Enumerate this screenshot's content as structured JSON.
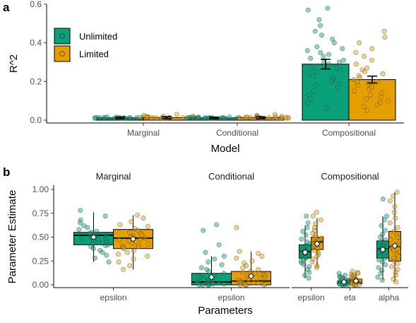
{
  "colors": {
    "unlimited": "#0aa07a",
    "limited": "#e69f00"
  },
  "chart_data": [
    {
      "type": "bar",
      "panel_label": "a",
      "xlabel": "Model",
      "ylabel": "R^2",
      "ylim": [
        0,
        0.6
      ],
      "yticks": [
        "0.0",
        "0.2",
        "0.4",
        "0.6"
      ],
      "categories": [
        "Marginal",
        "Conditional",
        "Compositional"
      ],
      "legend_position": "top-left",
      "series": [
        {
          "name": "Unlimited",
          "values": [
            0.012,
            0.012,
            0.29
          ],
          "error": [
            0.004,
            0.004,
            0.025
          ]
        },
        {
          "name": "Limited",
          "values": [
            0.013,
            0.013,
            0.21
          ],
          "error": [
            0.005,
            0.005,
            0.018
          ]
        }
      ],
      "points": {
        "Marginal": {
          "Unlimited": [
            0.01,
            0.012,
            0.013,
            0.011,
            0.015,
            0.01,
            0.012,
            0.014,
            0.01,
            0.011,
            0.016,
            0.013,
            0.012,
            0.01,
            0.011,
            0.014,
            0.012,
            0.013,
            0.01,
            0.012
          ],
          "Limited": [
            0.01,
            0.014,
            0.02,
            0.012,
            0.025,
            0.01,
            0.015,
            0.018,
            0.011,
            0.013,
            0.03,
            0.012,
            0.016,
            0.01,
            0.02,
            0.012,
            0.014,
            0.011,
            0.017,
            0.013
          ]
        },
        "Conditional": {
          "Unlimited": [
            0.01,
            0.012,
            0.013,
            0.011,
            0.015,
            0.01,
            0.012,
            0.014,
            0.01,
            0.011,
            0.016,
            0.013,
            0.012,
            0.01,
            0.011,
            0.014,
            0.012,
            0.013,
            0.01,
            0.012
          ],
          "Limited": [
            0.01,
            0.014,
            0.02,
            0.012,
            0.025,
            0.01,
            0.015,
            0.018,
            0.011,
            0.013,
            0.03,
            0.012,
            0.016,
            0.01,
            0.02,
            0.012,
            0.014,
            0.011,
            0.017,
            0.013
          ]
        },
        "Compositional": {
          "Unlimited": [
            0.58,
            0.57,
            0.52,
            0.49,
            0.46,
            0.44,
            0.42,
            0.4,
            0.38,
            0.37,
            0.36,
            0.35,
            0.34,
            0.33,
            0.32,
            0.31,
            0.3,
            0.3,
            0.29,
            0.28,
            0.27,
            0.27,
            0.26,
            0.25,
            0.24,
            0.23,
            0.22,
            0.21,
            0.2,
            0.19,
            0.18,
            0.17,
            0.15,
            0.13,
            0.11,
            0.09,
            0.06
          ],
          "Limited": [
            0.46,
            0.43,
            0.4,
            0.37,
            0.35,
            0.33,
            0.31,
            0.29,
            0.27,
            0.26,
            0.25,
            0.24,
            0.23,
            0.22,
            0.21,
            0.2,
            0.2,
            0.19,
            0.18,
            0.17,
            0.16,
            0.15,
            0.14,
            0.13,
            0.12,
            0.11,
            0.1,
            0.09,
            0.08,
            0.07,
            0.05
          ]
        }
      }
    },
    {
      "type": "box",
      "panel_label": "b",
      "xlabel": "Parameters",
      "ylabel": "Parameter Estimate",
      "ylim": [
        0,
        1
      ],
      "yticks": [
        "0.00",
        "0.25",
        "0.50",
        "0.75",
        "1.00"
      ],
      "facets": [
        {
          "title": "Marginal",
          "params": [
            {
              "name": "epsilon",
              "Unlimited": {
                "q1": 0.42,
                "median": 0.52,
                "q3": 0.55,
                "lo": 0.24,
                "hi": 0.76,
                "mean": 0.5,
                "points": [
                  0.78,
                  0.72,
                  0.68,
                  0.65,
                  0.62,
                  0.6,
                  0.58,
                  0.56,
                  0.55,
                  0.54,
                  0.53,
                  0.52,
                  0.51,
                  0.5,
                  0.49,
                  0.48,
                  0.47,
                  0.46,
                  0.45,
                  0.44,
                  0.43,
                  0.42,
                  0.41,
                  0.4,
                  0.38,
                  0.36,
                  0.34,
                  0.31,
                  0.28,
                  0.24
                ]
              },
              "Limited": {
                "q1": 0.38,
                "median": 0.49,
                "q3": 0.58,
                "lo": 0.16,
                "hi": 0.73,
                "mean": 0.48,
                "points": [
                  0.73,
                  0.7,
                  0.66,
                  0.63,
                  0.61,
                  0.59,
                  0.57,
                  0.55,
                  0.54,
                  0.52,
                  0.51,
                  0.5,
                  0.49,
                  0.48,
                  0.47,
                  0.46,
                  0.44,
                  0.43,
                  0.42,
                  0.41,
                  0.4,
                  0.39,
                  0.38,
                  0.36,
                  0.34,
                  0.32,
                  0.3,
                  0.27,
                  0.24,
                  0.2,
                  0.16
                ]
              }
            }
          ]
        },
        {
          "title": "Conditional",
          "params": [
            {
              "name": "epsilon",
              "Unlimited": {
                "q1": 0.0,
                "median": 0.03,
                "q3": 0.12,
                "lo": 0.0,
                "hi": 0.3,
                "mean": 0.08,
                "points": [
                  0.63,
                  0.57,
                  0.42,
                  0.34,
                  0.3,
                  0.27,
                  0.24,
                  0.21,
                  0.18,
                  0.16,
                  0.14,
                  0.12,
                  0.1,
                  0.09,
                  0.08,
                  0.07,
                  0.06,
                  0.05,
                  0.04,
                  0.03,
                  0.03,
                  0.02,
                  0.02,
                  0.01,
                  0.01,
                  0.01,
                  0.0,
                  0.0,
                  0.0,
                  0.0
                ]
              },
              "Limited": {
                "q1": 0.0,
                "median": 0.04,
                "q3": 0.14,
                "lo": 0.0,
                "hi": 0.35,
                "mean": 0.09,
                "points": [
                  0.6,
                  0.35,
                  0.33,
                  0.3,
                  0.28,
                  0.25,
                  0.23,
                  0.2,
                  0.18,
                  0.16,
                  0.14,
                  0.13,
                  0.12,
                  0.11,
                  0.1,
                  0.09,
                  0.08,
                  0.07,
                  0.06,
                  0.05,
                  0.04,
                  0.03,
                  0.02,
                  0.02,
                  0.01,
                  0.01,
                  0.0,
                  0.0,
                  0.0,
                  0.0
                ]
              }
            }
          ]
        },
        {
          "title": "Compositional",
          "params": [
            {
              "name": "epsilon",
              "Unlimited": {
                "q1": 0.28,
                "median": 0.35,
                "q3": 0.42,
                "lo": 0.07,
                "hi": 0.62,
                "mean": 0.34,
                "points": [
                  0.72,
                  0.65,
                  0.6,
                  0.56,
                  0.52,
                  0.48,
                  0.45,
                  0.43,
                  0.41,
                  0.39,
                  0.37,
                  0.36,
                  0.35,
                  0.34,
                  0.33,
                  0.32,
                  0.31,
                  0.3,
                  0.29,
                  0.28,
                  0.27,
                  0.25,
                  0.23,
                  0.21,
                  0.19,
                  0.16,
                  0.13,
                  0.1,
                  0.07
                ]
              },
              "Limited": {
                "q1": 0.37,
                "median": 0.45,
                "q3": 0.5,
                "lo": 0.18,
                "hi": 0.7,
                "mean": 0.43,
                "points": [
                  0.76,
                  0.72,
                  0.68,
                  0.64,
                  0.6,
                  0.57,
                  0.54,
                  0.52,
                  0.5,
                  0.49,
                  0.48,
                  0.47,
                  0.46,
                  0.45,
                  0.44,
                  0.43,
                  0.42,
                  0.41,
                  0.4,
                  0.39,
                  0.38,
                  0.36,
                  0.34,
                  0.32,
                  0.3,
                  0.27,
                  0.24,
                  0.2,
                  0.18
                ]
              }
            },
            {
              "name": "eta",
              "Unlimited": {
                "q1": 0.01,
                "median": 0.02,
                "q3": 0.04,
                "lo": 0.0,
                "hi": 0.1,
                "mean": 0.03,
                "points": [
                  0.12,
                  0.1,
                  0.09,
                  0.08,
                  0.07,
                  0.06,
                  0.05,
                  0.05,
                  0.04,
                  0.04,
                  0.03,
                  0.03,
                  0.03,
                  0.02,
                  0.02,
                  0.02,
                  0.02,
                  0.01,
                  0.01,
                  0.01,
                  0.01,
                  0.01,
                  0.0,
                  0.0,
                  0.0,
                  0.0
                ]
              },
              "Limited": {
                "q1": 0.01,
                "median": 0.03,
                "q3": 0.06,
                "lo": 0.0,
                "hi": 0.14,
                "mean": 0.04,
                "points": [
                  0.14,
                  0.13,
                  0.12,
                  0.11,
                  0.1,
                  0.09,
                  0.08,
                  0.07,
                  0.06,
                  0.06,
                  0.05,
                  0.05,
                  0.04,
                  0.04,
                  0.03,
                  0.03,
                  0.03,
                  0.02,
                  0.02,
                  0.02,
                  0.01,
                  0.01,
                  0.01,
                  0.0,
                  0.0,
                  0.0
                ]
              }
            },
            {
              "name": "alpha",
              "Unlimited": {
                "q1": 0.28,
                "median": 0.38,
                "q3": 0.46,
                "lo": 0.05,
                "hi": 0.72,
                "mean": 0.37,
                "points": [
                  0.9,
                  0.72,
                  0.68,
                  0.62,
                  0.57,
                  0.53,
                  0.5,
                  0.47,
                  0.45,
                  0.43,
                  0.41,
                  0.4,
                  0.39,
                  0.38,
                  0.37,
                  0.36,
                  0.35,
                  0.34,
                  0.32,
                  0.3,
                  0.28,
                  0.26,
                  0.24,
                  0.21,
                  0.18,
                  0.15,
                  0.12,
                  0.08,
                  0.05
                ]
              },
              "Limited": {
                "q1": 0.25,
                "median": 0.4,
                "q3": 0.56,
                "lo": 0.03,
                "hi": 0.97,
                "mean": 0.41,
                "points": [
                  0.97,
                  0.93,
                  0.88,
                  0.82,
                  0.76,
                  0.7,
                  0.65,
                  0.6,
                  0.56,
                  0.53,
                  0.5,
                  0.47,
                  0.45,
                  0.43,
                  0.41,
                  0.4,
                  0.38,
                  0.36,
                  0.34,
                  0.32,
                  0.3,
                  0.28,
                  0.25,
                  0.22,
                  0.19,
                  0.16,
                  0.13,
                  0.1,
                  0.06,
                  0.03
                ]
              }
            }
          ]
        }
      ]
    }
  ]
}
